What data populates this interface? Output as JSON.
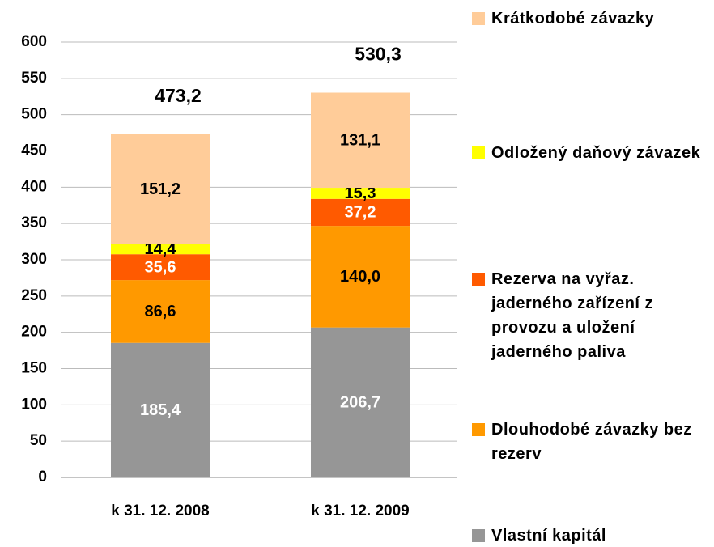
{
  "chart_data": {
    "type": "stacked_bar",
    "categories": [
      "k 31. 12. 2008",
      "k 31. 12. 2009"
    ],
    "series": [
      {
        "name": "Vlastní kapitál",
        "color": "#969696",
        "label_color": "#ffffff",
        "values": [
          185.4,
          206.7
        ],
        "value_labels": [
          "185,4",
          "206,7"
        ]
      },
      {
        "name": "Dlouhodobé závazky bez rezerv",
        "color": "#ff9900",
        "label_color": "#000000",
        "values": [
          86.6,
          140.0
        ],
        "value_labels": [
          "86,6",
          "140,0"
        ]
      },
      {
        "name": "Rezerva na vyřaz. jaderného zařízení z provozu a uložení jaderného paliva",
        "color": "#ff5a00",
        "label_color": "#ffffff",
        "values": [
          35.6,
          37.2
        ],
        "value_labels": [
          "35,6",
          "37,2"
        ]
      },
      {
        "name": "Odložený daňový závazek",
        "color": "#ffff00",
        "label_color": "#000000",
        "values": [
          14.4,
          15.3
        ],
        "value_labels": [
          "14,4",
          "15,3"
        ]
      },
      {
        "name": "Krátkodobé závazky",
        "color": "#ffcc99",
        "label_color": "#000000",
        "values": [
          151.2,
          131.1
        ],
        "value_labels": [
          "151,2",
          "131,1"
        ]
      }
    ],
    "totals": [
      473.2,
      530.3
    ],
    "total_labels": [
      "473,2",
      "530,3"
    ],
    "ylim": [
      0,
      600
    ],
    "yticks": [
      0,
      50,
      100,
      150,
      200,
      250,
      300,
      350,
      400,
      450,
      500,
      550,
      600
    ],
    "grid": true
  }
}
